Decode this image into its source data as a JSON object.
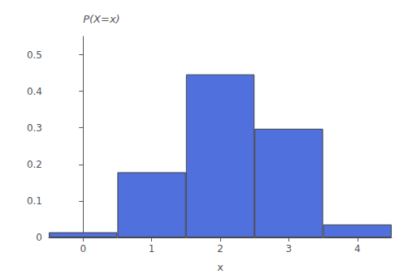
{
  "chart_data": {
    "type": "bar",
    "x": [
      0,
      1,
      2,
      3,
      4
    ],
    "values": [
      0.0143,
      0.1786,
      0.4464,
      0.2976,
      0.0357
    ],
    "xlabel": "x",
    "ylabel": "P(X=x)",
    "xlim": [
      -0.5,
      4.5
    ],
    "xticks": [
      0,
      1,
      2,
      3,
      4
    ],
    "ylim": [
      0,
      0.55
    ],
    "yticks": [
      0,
      0.1,
      0.2,
      0.3,
      0.4,
      0.5
    ],
    "grid": false
  }
}
